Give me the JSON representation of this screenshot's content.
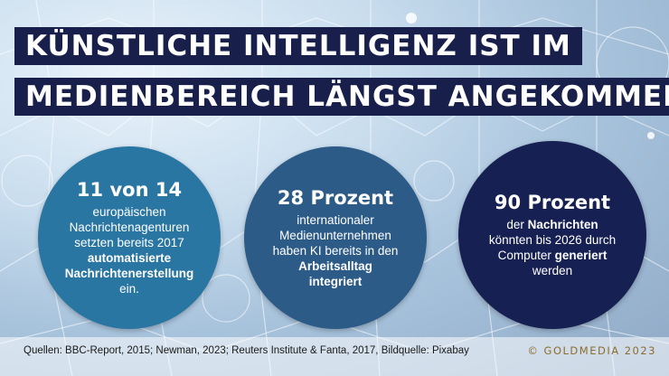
{
  "header": {
    "line1": "KÜNSTLICHE INTELLIGENZ IST IM",
    "line2": "MEDIENBEREICH LÄNGST ANGEKOMMEN"
  },
  "stats": [
    {
      "headline": "11 von 14",
      "lines": [
        "europäischen",
        "Nachrichtenagenturen",
        "setzten bereits 2017"
      ],
      "bold_lines": [
        "automatisierte",
        "Nachrichtenerstellung"
      ],
      "tail": "ein.",
      "color": "#2a76a2"
    },
    {
      "headline": "28 Prozent",
      "lines": [
        "internationaler",
        "Medienunternehmen",
        "haben KI bereits in den"
      ],
      "bold_lines": [
        "Arbeitsalltag",
        "integriert"
      ],
      "color": "#2c5b88"
    },
    {
      "headline": "90 Prozent",
      "pre1": "der ",
      "bold1": "Nachrichten",
      "line2": "könnten bis 2026 durch",
      "pre3": "Computer ",
      "bold3": "generiert",
      "line4": "werden",
      "color": "#162052"
    }
  ],
  "footer": {
    "sources": "Quellen: BBC-Report, 2015; Newman, 2023; Reuters Institute & Fanta, 2017, Bildquelle: Pixabay",
    "brand": "© GOLDMEDIA 2023"
  },
  "colors": {
    "title_bg": "#171f4a",
    "brand": "#8c6d2e"
  }
}
